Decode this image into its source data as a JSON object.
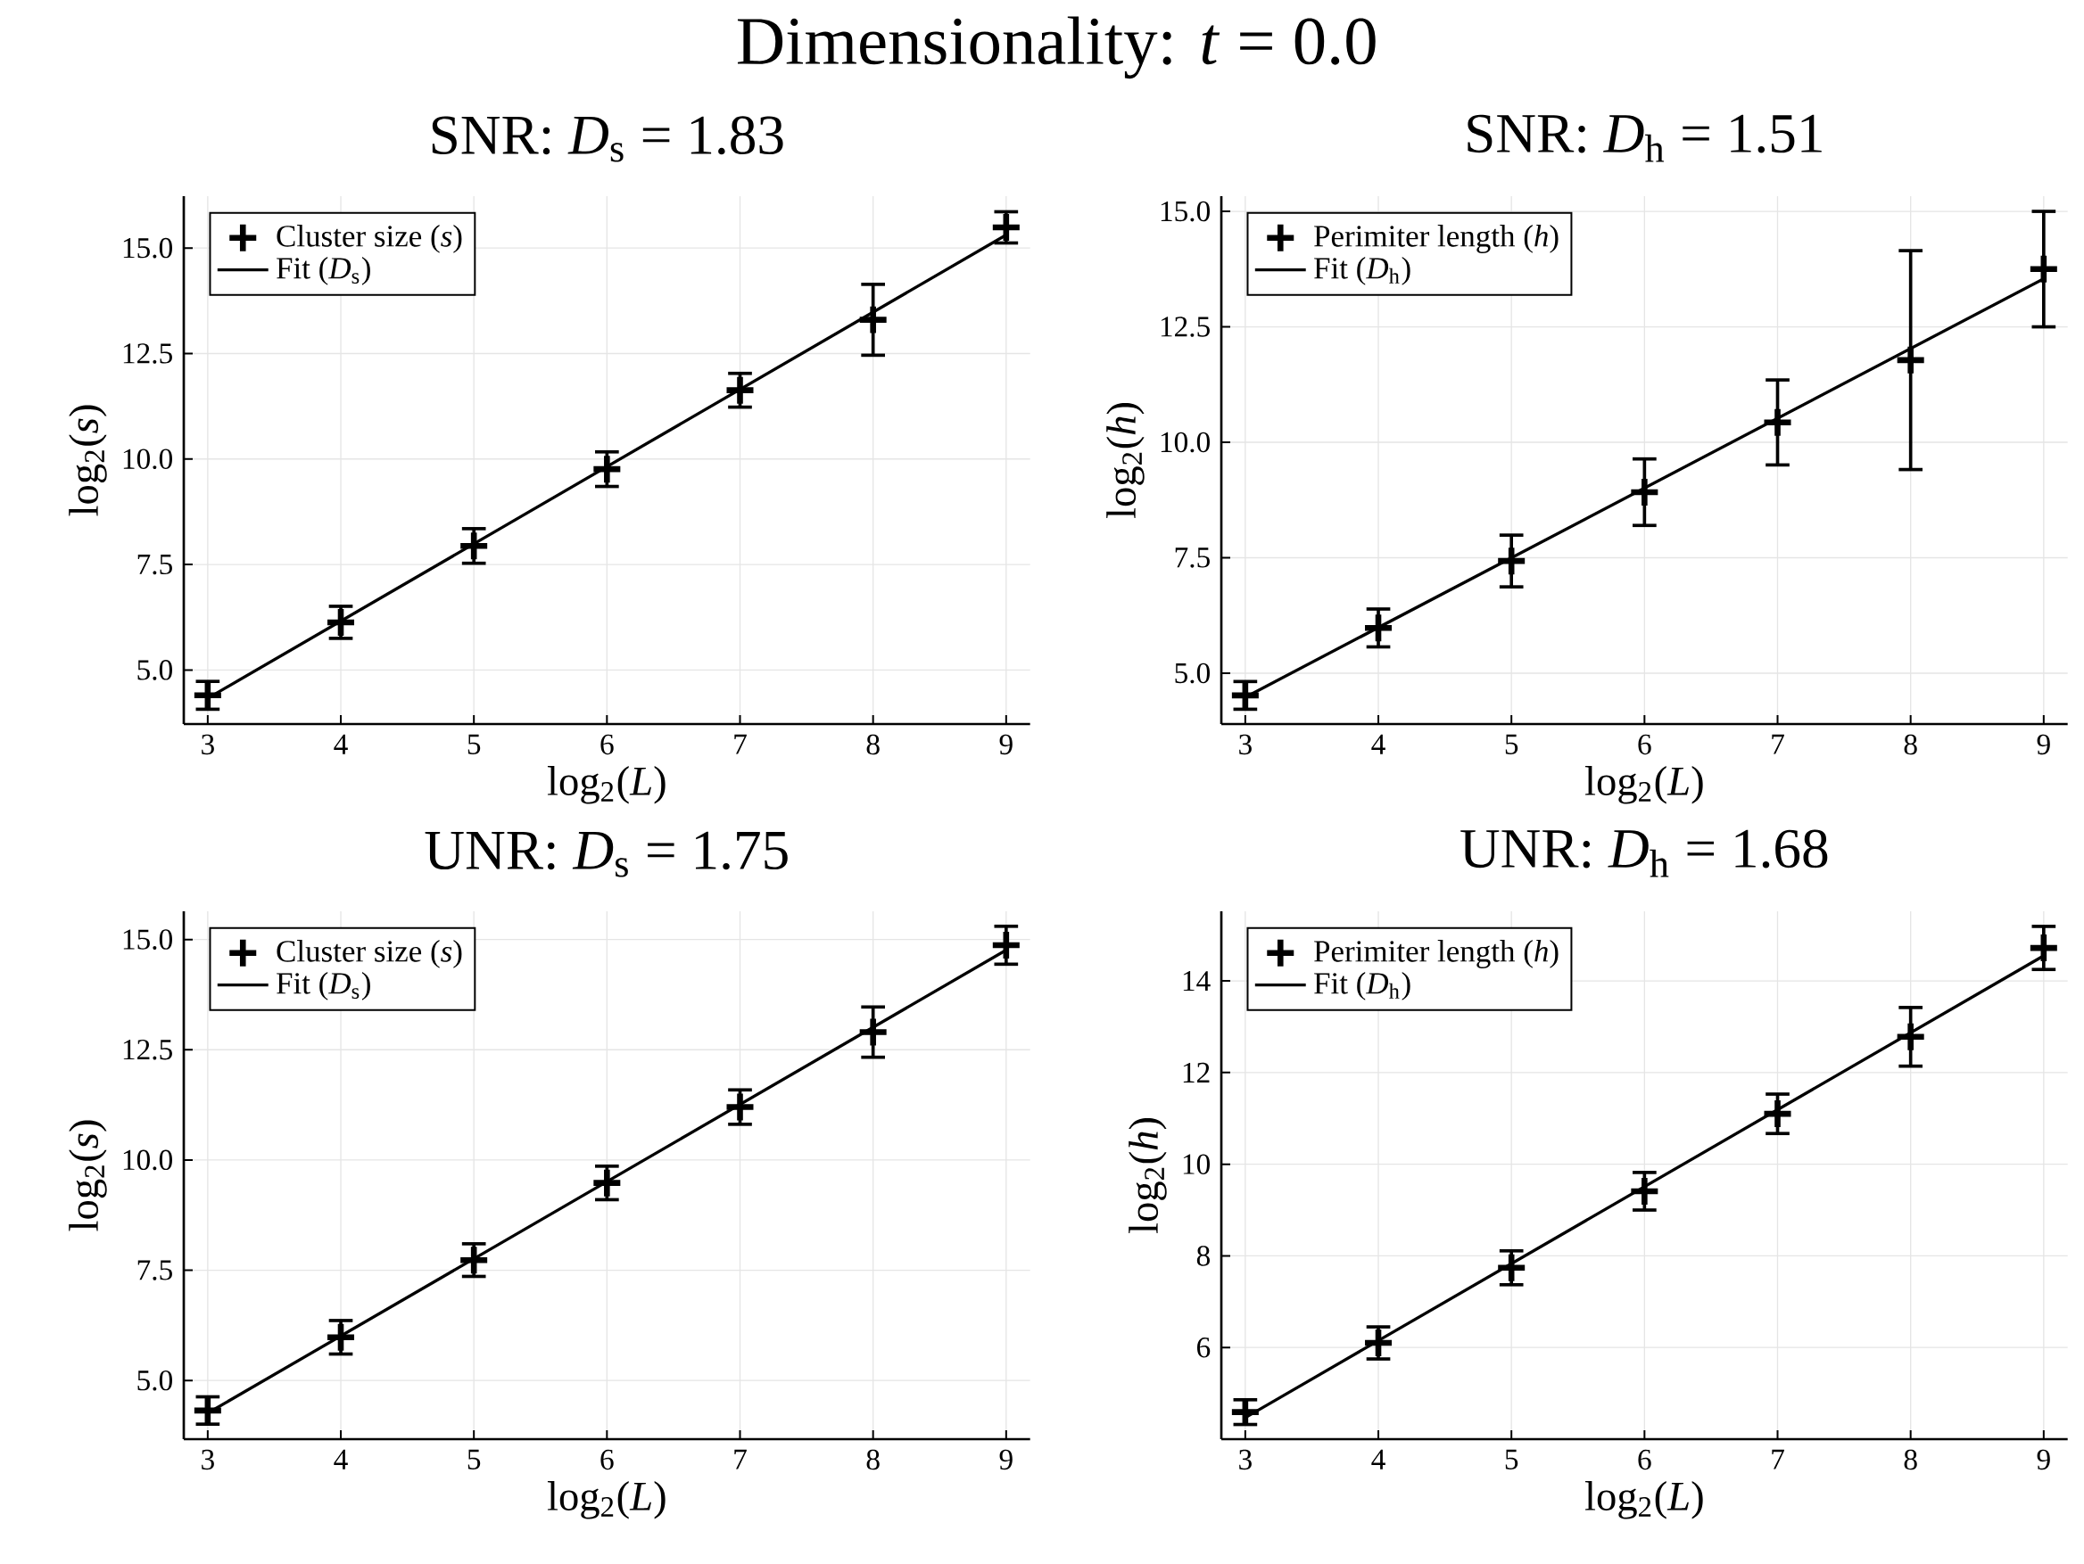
{
  "chart_data": [
    {
      "type": "scatter",
      "title": "SNR: *D*$_{s}$ = 1.83",
      "annotations": [
        "Dimensionality: *t* = 0.0"
      ],
      "xlabel": "log$_{2}$(*L*)",
      "ylabel": "log$_{2}$(*s*)",
      "xlim": [
        2.82,
        9.18
      ],
      "ylim": [
        3.72,
        16.23
      ],
      "xticks": [
        3,
        4,
        5,
        6,
        7,
        8,
        9
      ],
      "yticks": [
        {
          "value": 5,
          "label": "5.0"
        },
        7.5,
        {
          "value": 10,
          "label": "10.0"
        },
        12.5,
        {
          "value": 15,
          "label": "15.0"
        }
      ],
      "grid": true,
      "legend": "top left",
      "series": [
        {
          "name": "Cluster size (*s*)",
          "marker": "cross",
          "color": "#000000",
          "x": [
            3,
            4,
            5,
            6,
            7,
            8,
            9
          ],
          "values": [
            4.4,
            6.13,
            7.94,
            9.76,
            11.63,
            13.3,
            15.49
          ],
          "errors": [
            0.33,
            0.38,
            0.41,
            0.41,
            0.4,
            0.84,
            0.37
          ]
        },
        {
          "name": "Fit (*D*$_{s}$)",
          "type": "line",
          "color": "#000000",
          "x": [
            3,
            9
          ],
          "values": [
            4.33,
            15.31
          ]
        }
      ]
    },
    {
      "type": "scatter",
      "title": "SNR: *D*$_{h}$ = 1.51",
      "xlabel": "log$_{2}$(*L*)",
      "ylabel": "log$_{2}$(*h*)",
      "xlim": [
        2.82,
        9.18
      ],
      "ylim": [
        3.9,
        15.33
      ],
      "xticks": [
        3,
        4,
        5,
        6,
        7,
        8,
        9
      ],
      "yticks": [
        {
          "value": 5,
          "label": "5.0"
        },
        7.5,
        {
          "value": 10,
          "label": "10.0"
        },
        12.5,
        {
          "value": 15,
          "label": "15.0"
        }
      ],
      "grid": true,
      "legend": "top left",
      "series": [
        {
          "name": "Perimiter length (*h*)",
          "marker": "cross",
          "color": "#000000",
          "x": [
            3,
            4,
            5,
            6,
            7,
            8,
            9
          ],
          "values": [
            4.52,
            5.98,
            7.43,
            8.92,
            10.43,
            11.78,
            13.75
          ],
          "errors": [
            0.3,
            0.41,
            0.56,
            0.72,
            0.92,
            2.37,
            1.25
          ]
        },
        {
          "name": "Fit (*D*$_{h}$)",
          "type": "line",
          "color": "#000000",
          "x": [
            3,
            9
          ],
          "values": [
            4.48,
            13.54
          ]
        }
      ]
    },
    {
      "type": "scatter",
      "title": "UNR: *D*$_{s}$ = 1.75",
      "xlabel": "log$_{2}$(*L*)",
      "ylabel": "log$_{2}$(*s*)",
      "xlim": [
        2.82,
        9.18
      ],
      "ylim": [
        3.67,
        15.64
      ],
      "xticks": [
        3,
        4,
        5,
        6,
        7,
        8,
        9
      ],
      "yticks": [
        {
          "value": 5,
          "label": "5.0"
        },
        7.5,
        {
          "value": 10,
          "label": "10.0"
        },
        12.5,
        {
          "value": 15,
          "label": "15.0"
        }
      ],
      "grid": true,
      "legend": "top left",
      "series": [
        {
          "name": "Cluster size (*s*)",
          "marker": "cross",
          "color": "#000000",
          "x": [
            3,
            4,
            5,
            6,
            7,
            8,
            9
          ],
          "values": [
            4.32,
            5.98,
            7.73,
            9.48,
            11.2,
            12.9,
            14.87
          ],
          "errors": [
            0.31,
            0.38,
            0.37,
            0.38,
            0.39,
            0.57,
            0.43
          ]
        },
        {
          "name": "Fit (*D*$_{s}$)",
          "type": "line",
          "color": "#000000",
          "x": [
            3,
            9
          ],
          "values": [
            4.26,
            14.76
          ]
        }
      ]
    },
    {
      "type": "scatter",
      "title": "UNR: *D*$_{h}$ = 1.68",
      "xlabel": "log$_{2}$(*L*)",
      "ylabel": "log$_{2}$(*h*)",
      "xlim": [
        2.82,
        9.18
      ],
      "ylim": [
        4.0,
        15.52
      ],
      "xticks": [
        3,
        4,
        5,
        6,
        7,
        8,
        9
      ],
      "yticks": [
        6,
        8,
        10,
        12,
        14
      ],
      "grid": true,
      "legend": "top left",
      "series": [
        {
          "name": "Perimiter length (*h*)",
          "marker": "cross",
          "color": "#000000",
          "x": [
            3,
            4,
            5,
            6,
            7,
            8,
            9
          ],
          "values": [
            4.59,
            6.1,
            7.74,
            9.41,
            11.1,
            12.78,
            14.72
          ],
          "errors": [
            0.27,
            0.35,
            0.37,
            0.41,
            0.43,
            0.64,
            0.47
          ]
        },
        {
          "name": "Fit (*D*$_{h}$)",
          "type": "line",
          "color": "#000000",
          "x": [
            3,
            9
          ],
          "values": [
            4.47,
            14.55
          ]
        }
      ]
    }
  ]
}
